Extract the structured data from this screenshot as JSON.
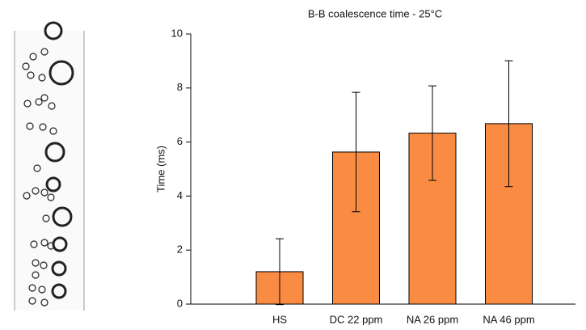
{
  "chart_data": {
    "type": "bar",
    "title": "B-B coalescence time - 25°C",
    "y_label": "Time (ms)",
    "categories": [
      "HS",
      "DC 22 ppm",
      "NA 26 ppm",
      "NA 46 ppm"
    ],
    "values": [
      1.2,
      5.63,
      6.33,
      6.68
    ],
    "errors": [
      1.22,
      2.21,
      1.75,
      2.33
    ],
    "color": "#f98b43",
    "ylim": [
      0,
      10
    ],
    "yticks": [
      0,
      2,
      4,
      6,
      8,
      10
    ]
  }
}
